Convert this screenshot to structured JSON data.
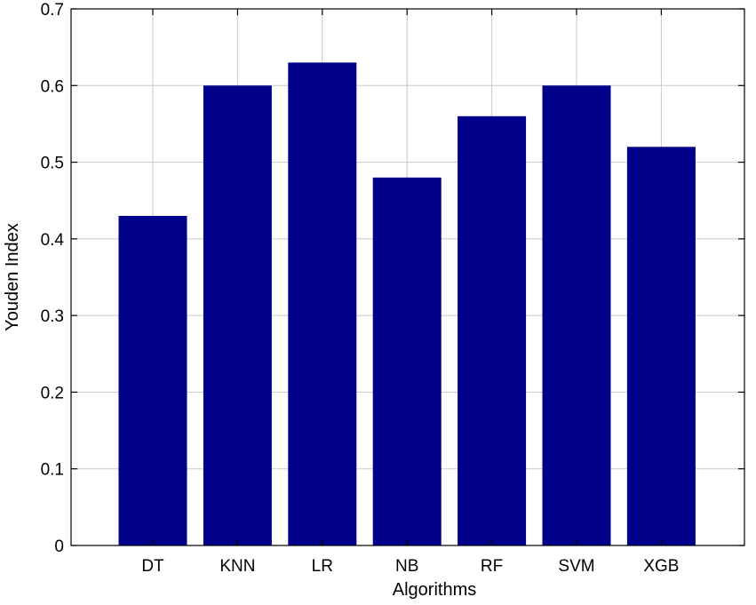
{
  "chart_data": {
    "type": "bar",
    "title": "",
    "xlabel": "Algorithms",
    "ylabel": "Youden Index",
    "categories": [
      "DT",
      "KNN",
      "LR",
      "NB",
      "RF",
      "SVM",
      "XGB"
    ],
    "values": [
      0.43,
      0.6,
      0.63,
      0.48,
      0.56,
      0.6,
      0.52
    ],
    "ylim": [
      0,
      0.7
    ],
    "yticks": [
      "0",
      "0.1",
      "0.2",
      "0.3",
      "0.4",
      "0.5",
      "0.6",
      "0.7"
    ],
    "grid": true,
    "bar_color": "#00008b",
    "grid_color": "#c8c8c8"
  }
}
